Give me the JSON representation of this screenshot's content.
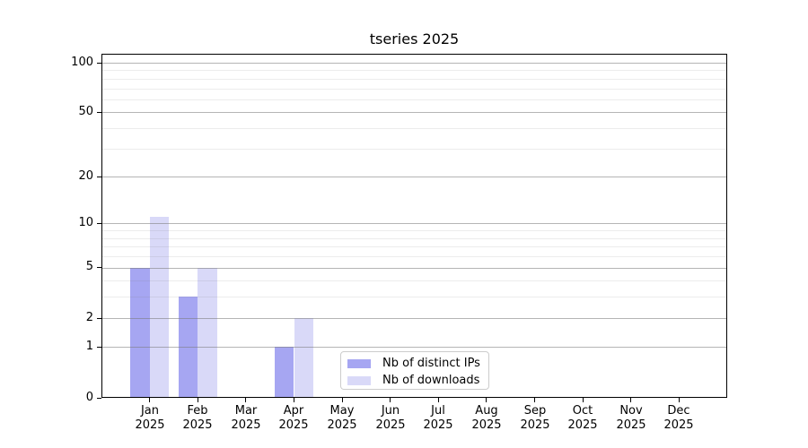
{
  "figure": {
    "title": "tseries 2025"
  },
  "chart_data": {
    "type": "bar",
    "title": "tseries 2025",
    "x_axis": {
      "categories": [
        {
          "month": "Jan",
          "year": "2025"
        },
        {
          "month": "Feb",
          "year": "2025"
        },
        {
          "month": "Mar",
          "year": "2025"
        },
        {
          "month": "Apr",
          "year": "2025"
        },
        {
          "month": "May",
          "year": "2025"
        },
        {
          "month": "Jun",
          "year": "2025"
        },
        {
          "month": "Jul",
          "year": "2025"
        },
        {
          "month": "Aug",
          "year": "2025"
        },
        {
          "month": "Sep",
          "year": "2025"
        },
        {
          "month": "Oct",
          "year": "2025"
        },
        {
          "month": "Nov",
          "year": "2025"
        },
        {
          "month": "Dec",
          "year": "2025"
        }
      ]
    },
    "y_axis": {
      "scale": "log1p",
      "range": [
        0,
        113
      ],
      "major_ticks": [
        0,
        1,
        2,
        5,
        10,
        20,
        50,
        100
      ],
      "minor_gridlines": [
        3,
        4,
        6,
        7,
        8,
        9,
        30,
        40,
        60,
        70,
        80,
        90
      ]
    },
    "series": [
      {
        "name": "Nb of distinct IPs",
        "color": "#a6a6f2",
        "values": [
          5,
          3,
          0,
          1,
          0,
          0,
          0,
          0,
          0,
          0,
          0,
          0
        ]
      },
      {
        "name": "Nb of downloads",
        "color": "#d9d9f8",
        "values": [
          11,
          5,
          0,
          2,
          0,
          0,
          0,
          0,
          0,
          0,
          0,
          0
        ]
      }
    ],
    "legend": {
      "position": "lower center",
      "items": [
        "Nb of distinct IPs",
        "Nb of downloads"
      ]
    },
    "grid": {
      "major_color": "#b3b3b3",
      "minor_color": "#eaeaea"
    },
    "axis_color": "#000000",
    "background": "#ffffff"
  }
}
